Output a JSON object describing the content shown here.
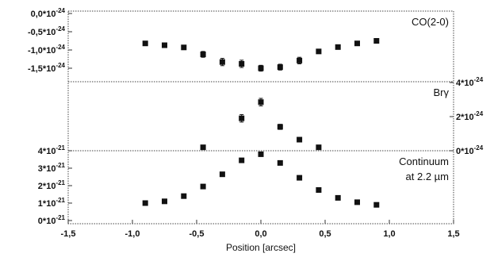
{
  "chart_data": [
    {
      "type": "scatter",
      "panel": "top",
      "label": "CO(2-0)",
      "y_tick_side": "left",
      "ylim": [
        -1.75e-24,
        0.0
      ],
      "yticks": [
        {
          "value": 0.0,
          "label": "0,0*10",
          "exp": "-24"
        },
        {
          "value": -5e-25,
          "label": "-0,5*10",
          "exp": "-24"
        },
        {
          "value": -1e-24,
          "label": "-1,0*10",
          "exp": "-24"
        },
        {
          "value": -1.5e-24,
          "label": "-1,5*10",
          "exp": "-24"
        }
      ],
      "series": [
        {
          "x": [
            -0.9,
            -0.75,
            -0.6,
            -0.45,
            -0.3,
            -0.15,
            0.0,
            0.15,
            0.3,
            0.45,
            0.6,
            0.75,
            0.9
          ],
          "y": [
            -8.2e-25,
            -8.7e-25,
            -9.3e-25,
            -1.12e-24,
            -1.33e-24,
            -1.38e-24,
            -1.5e-24,
            -1.47e-24,
            -1.29e-24,
            -1.04e-24,
            -9.2e-25,
            -8.2e-25,
            -7.5e-25
          ],
          "err": [
            4e-26,
            4e-26,
            5e-26,
            8e-26,
            1e-25,
            1e-25,
            8e-26,
            8e-26,
            9e-26,
            5e-26,
            4e-26,
            4e-26,
            4e-26
          ]
        }
      ]
    },
    {
      "type": "scatter",
      "panel": "middle",
      "label": "Brγ",
      "y_tick_side": "right",
      "ylim": [
        0.0,
        4e-24
      ],
      "yticks": [
        {
          "value": 4e-24,
          "label": "4*10",
          "exp": "-24"
        },
        {
          "value": 2e-24,
          "label": "2*10",
          "exp": "-24"
        },
        {
          "value": 0.0,
          "label": "0*10",
          "exp": "-24"
        }
      ],
      "series": [
        {
          "x": [
            -0.45,
            -0.15,
            0.0,
            0.15,
            0.3,
            0.45
          ],
          "y": [
            2e-25,
            1.9e-24,
            2.85e-24,
            1.4e-24,
            6.5e-25,
            2e-25
          ],
          "err": [
            8e-26,
            2.2e-25,
            2.2e-25,
            1.5e-25,
            1.2e-25,
            8e-26
          ]
        }
      ]
    },
    {
      "type": "scatter",
      "panel": "bottom",
      "label": "Continuum",
      "label2": "at 2.2 µm",
      "y_tick_side": "left",
      "ylim": [
        0.0,
        4e-21
      ],
      "yticks": [
        {
          "value": 4e-21,
          "label": "4*10",
          "exp": "-21"
        },
        {
          "value": 3e-21,
          "label": "3*10",
          "exp": "-21"
        },
        {
          "value": 2e-21,
          "label": "2*10",
          "exp": "-21"
        },
        {
          "value": 1e-21,
          "label": "1*10",
          "exp": "-21"
        },
        {
          "value": 0.0,
          "label": "0*10",
          "exp": "-21"
        }
      ],
      "series": [
        {
          "x": [
            -0.9,
            -0.75,
            -0.6,
            -0.45,
            -0.3,
            -0.15,
            0.0,
            0.15,
            0.3,
            0.45,
            0.6,
            0.75,
            0.9
          ],
          "y": [
            1e-21,
            1.1e-21,
            1.4e-21,
            1.95e-21,
            2.65e-21,
            3.45e-21,
            3.8e-21,
            3.3e-21,
            2.45e-21,
            1.75e-21,
            1.3e-21,
            1.05e-21,
            9e-22
          ]
        }
      ]
    }
  ],
  "x_axis": {
    "label": "Position [arcsec]",
    "xlim": [
      -1.5,
      1.5
    ],
    "ticks": [
      {
        "value": -1.5,
        "label": "-1,5"
      },
      {
        "value": -1.0,
        "label": "-1,0"
      },
      {
        "value": -0.5,
        "label": "-0,5"
      },
      {
        "value": 0.0,
        "label": "0,0"
      },
      {
        "value": 0.5,
        "label": "0,5"
      },
      {
        "value": 1.0,
        "label": "1,0"
      },
      {
        "value": 1.5,
        "label": "1,5"
      }
    ]
  }
}
